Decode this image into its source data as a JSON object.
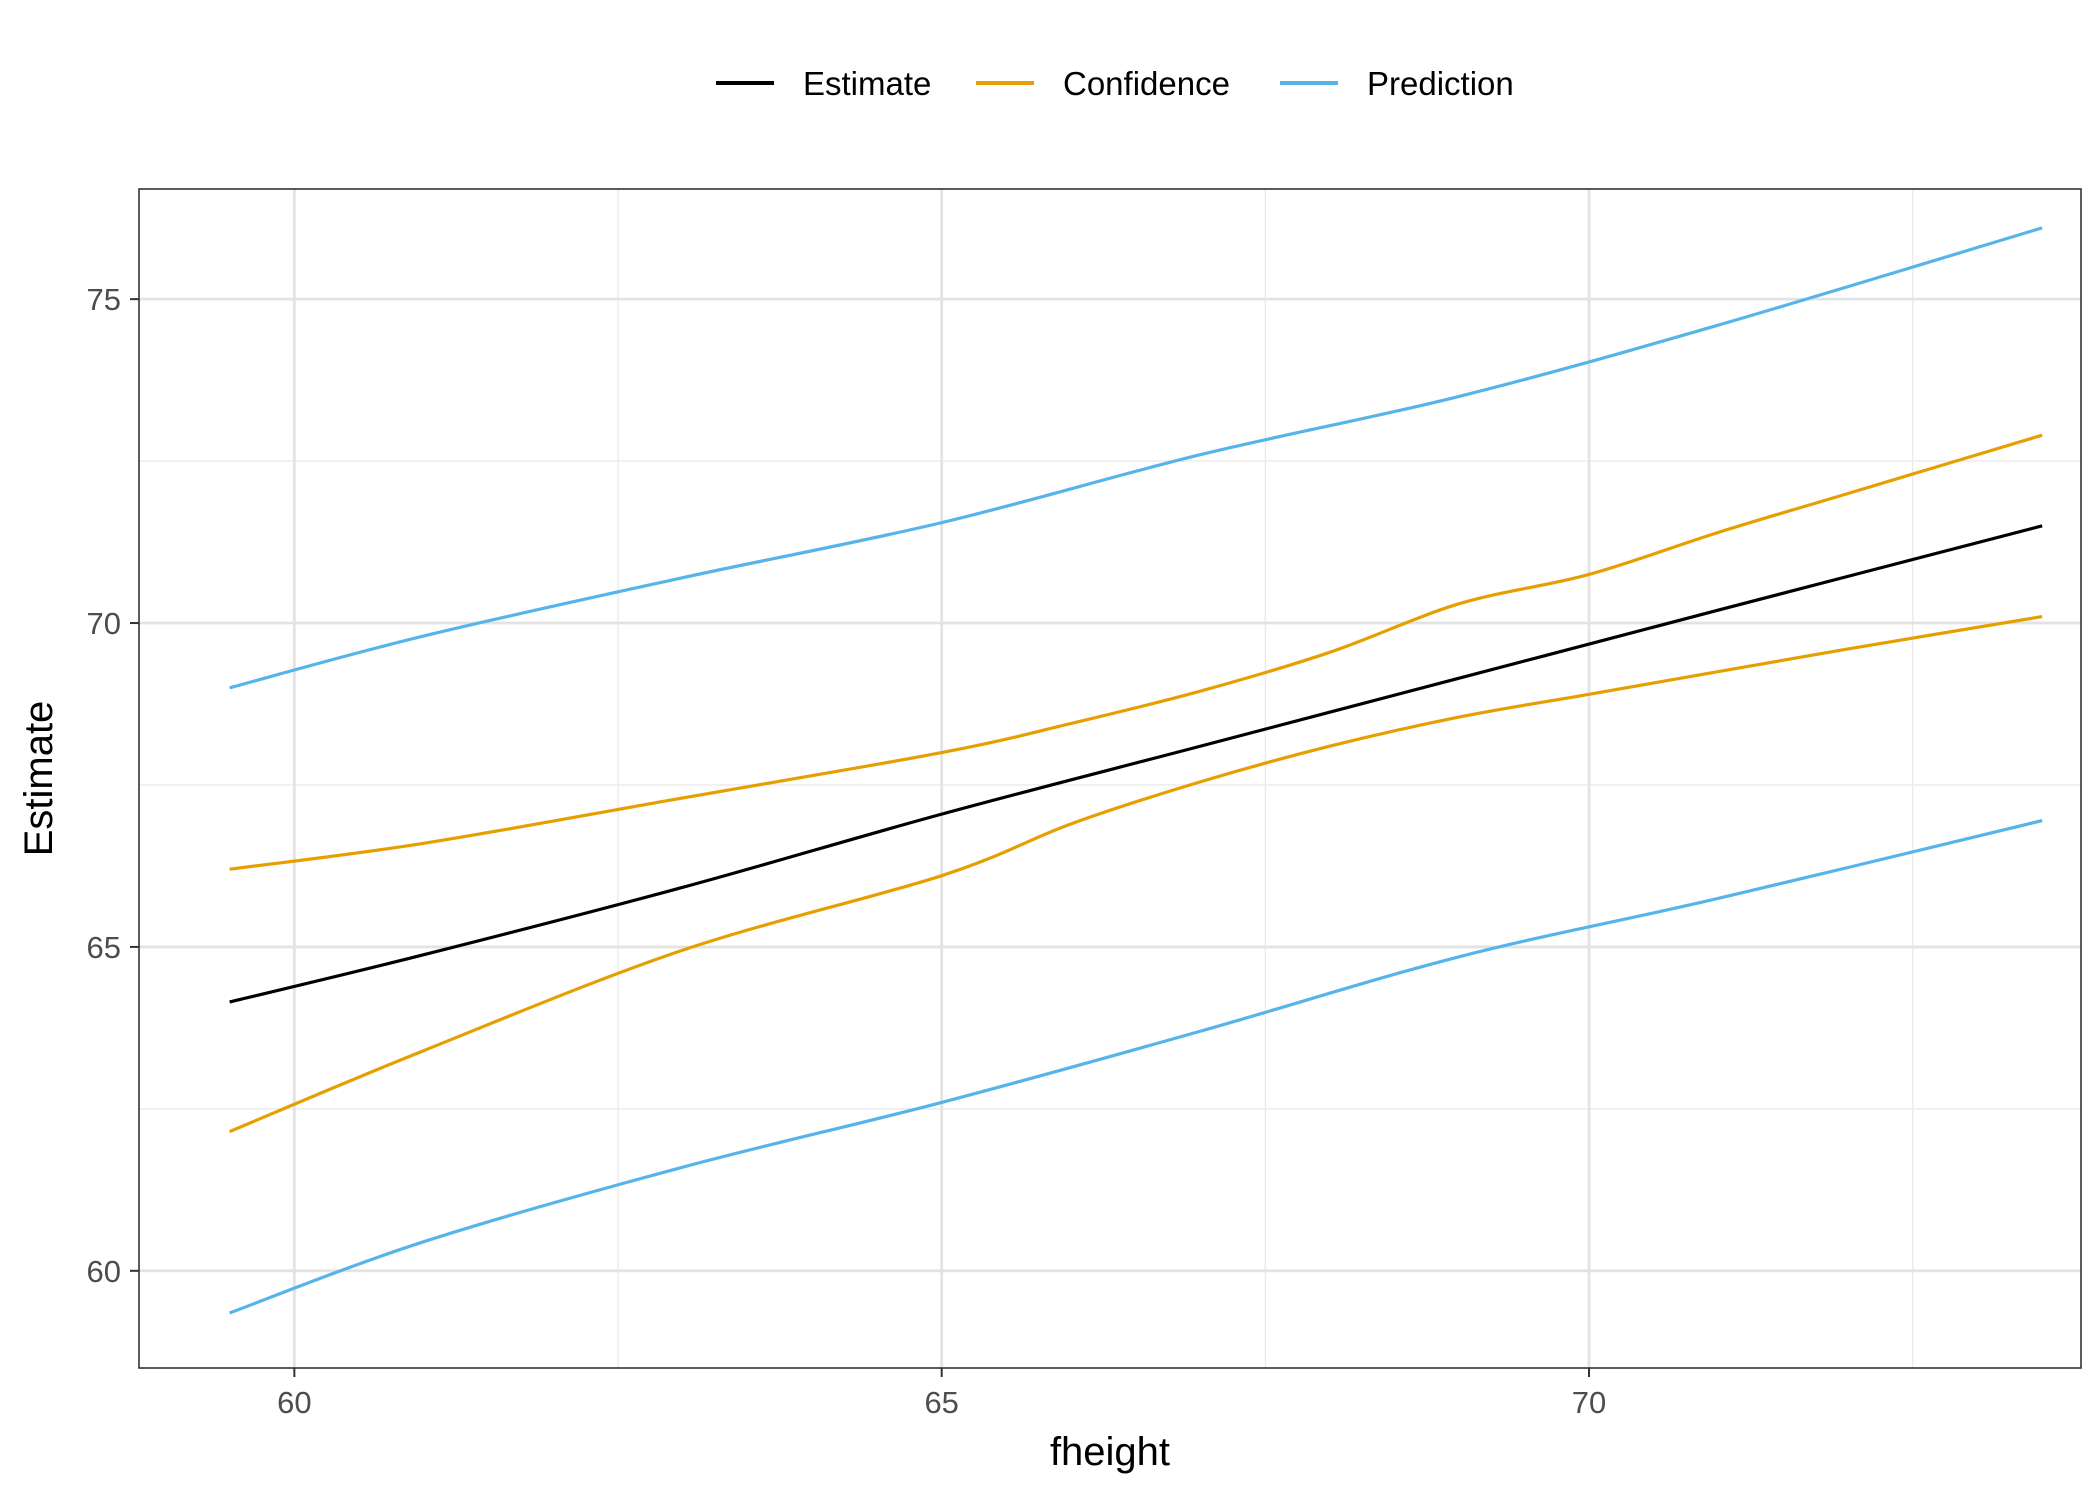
{
  "chart_data": {
    "type": "line",
    "title": "",
    "xlabel": "fheight",
    "ylabel": "Estimate",
    "xlim": [
      58.8,
      73.8
    ],
    "ylim": [
      58.5,
      76.7
    ],
    "x_ticks": [
      60,
      65,
      70
    ],
    "x_tick_labels": [
      "60",
      "65",
      "70"
    ],
    "x_minor": [
      62.5,
      67.5,
      72.5
    ],
    "y_ticks": [
      60,
      65,
      70,
      75
    ],
    "y_tick_labels": [
      "60",
      "65",
      "70",
      "75"
    ],
    "y_minor": [
      62.5,
      67.5,
      72.5
    ],
    "grid": true,
    "legend_position": "top",
    "legend": [
      {
        "name": "Estimate",
        "color": "#000000"
      },
      {
        "name": "Confidence",
        "color": "#E69F00"
      },
      {
        "name": "Prediction",
        "color": "#56B4E9"
      }
    ],
    "series": [
      {
        "name": "Estimate",
        "group": "Estimate",
        "color": "#000000",
        "x": [
          59.5,
          61,
          63,
          65,
          67,
          69,
          71,
          73.5
        ],
        "y": [
          64.15,
          64.88,
          65.92,
          67.05,
          68.1,
          69.15,
          70.2,
          71.5
        ]
      },
      {
        "name": "Confidence upper",
        "group": "Confidence",
        "color": "#E69F00",
        "x": [
          59.5,
          61,
          63,
          65,
          66,
          67,
          68,
          69,
          70,
          71,
          72,
          73.5
        ],
        "y": [
          66.2,
          66.6,
          67.3,
          68.0,
          68.45,
          68.95,
          69.55,
          70.3,
          70.75,
          71.4,
          72.0,
          72.9
        ]
      },
      {
        "name": "Confidence lower",
        "group": "Confidence",
        "color": "#E69F00",
        "x": [
          59.5,
          61,
          63,
          65,
          66,
          67,
          68,
          69,
          70,
          71,
          72,
          73.5
        ],
        "y": [
          62.15,
          63.4,
          64.95,
          66.1,
          66.9,
          67.55,
          68.1,
          68.55,
          68.9,
          69.25,
          69.6,
          70.1
        ]
      },
      {
        "name": "Prediction upper",
        "group": "Prediction",
        "color": "#56B4E9",
        "x": [
          59.5,
          61,
          63,
          65,
          67,
          69,
          71,
          73.5
        ],
        "y": [
          69.0,
          69.8,
          70.7,
          71.55,
          72.6,
          73.5,
          74.6,
          76.1
        ]
      },
      {
        "name": "Prediction lower",
        "group": "Prediction",
        "color": "#56B4E9",
        "x": [
          59.5,
          61,
          63,
          65,
          67,
          69,
          71,
          73.5
        ],
        "y": [
          59.35,
          60.45,
          61.6,
          62.6,
          63.7,
          64.85,
          65.75,
          66.95
        ]
      }
    ]
  }
}
